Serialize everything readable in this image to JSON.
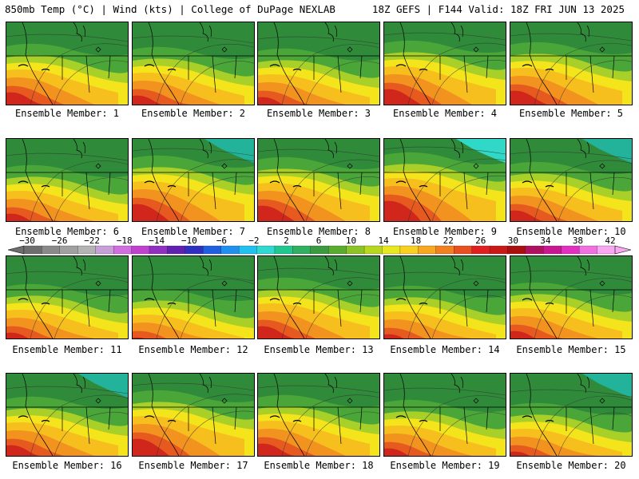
{
  "header": {
    "left": "850mb Temp (°C) | Wind (kts) | College of DuPage NEXLAB",
    "right": "18Z GEFS | F144 Valid: 18Z FRI JUN 13 2025"
  },
  "panels": [
    {
      "label": "Ensemble Member: 1"
    },
    {
      "label": "Ensemble Member: 2"
    },
    {
      "label": "Ensemble Member: 3"
    },
    {
      "label": "Ensemble Member: 4"
    },
    {
      "label": "Ensemble Member: 5"
    },
    {
      "label": "Ensemble Member: 6"
    },
    {
      "label": "Ensemble Member: 7"
    },
    {
      "label": "Ensemble Member: 8"
    },
    {
      "label": "Ensemble Member: 9"
    },
    {
      "label": "Ensemble Member: 10"
    },
    {
      "label": "Ensemble Member: 11"
    },
    {
      "label": "Ensemble Member: 12"
    },
    {
      "label": "Ensemble Member: 13"
    },
    {
      "label": "Ensemble Member: 14"
    },
    {
      "label": "Ensemble Member: 15"
    },
    {
      "label": "Ensemble Member: 16"
    },
    {
      "label": "Ensemble Member: 17"
    },
    {
      "label": "Ensemble Member: 18"
    },
    {
      "label": "Ensemble Member: 19"
    },
    {
      "label": "Ensemble Member: 20"
    }
  ],
  "colorbar": {
    "labels": [
      "−30",
      "−26",
      "−22",
      "−18",
      "−14",
      "−10",
      "−6",
      "−2",
      "2",
      "6",
      "10",
      "14",
      "18",
      "22",
      "26",
      "30",
      "34",
      "38",
      "42"
    ],
    "colors": [
      "#6e6e6e",
      "#8a8a8a",
      "#a0a0a0",
      "#b4b4b4",
      "#c8a0d8",
      "#d070e0",
      "#c040d0",
      "#9030c0",
      "#6020b0",
      "#3030c0",
      "#2060e0",
      "#2090f0",
      "#20c0f0",
      "#30d8d0",
      "#20c890",
      "#30b060",
      "#3a9a40",
      "#5aac30",
      "#8cc428",
      "#b8d820",
      "#e8e820",
      "#f8d020",
      "#f8a820",
      "#f08020",
      "#e85020",
      "#e02020",
      "#c81818",
      "#a81010",
      "#b01060",
      "#c81890",
      "#e030c0",
      "#f070e0",
      "#f8a8f0"
    ]
  },
  "palette": {
    "cold_green": "#2f8a3a",
    "green": "#4aa638",
    "lime": "#a8d028",
    "yellow": "#f4e41c",
    "gold": "#f7bf1e",
    "orange": "#f29320",
    "red_orange": "#e65a20",
    "red": "#d0261c",
    "teal": "#22b39a",
    "cyan": "#30d8c8"
  }
}
